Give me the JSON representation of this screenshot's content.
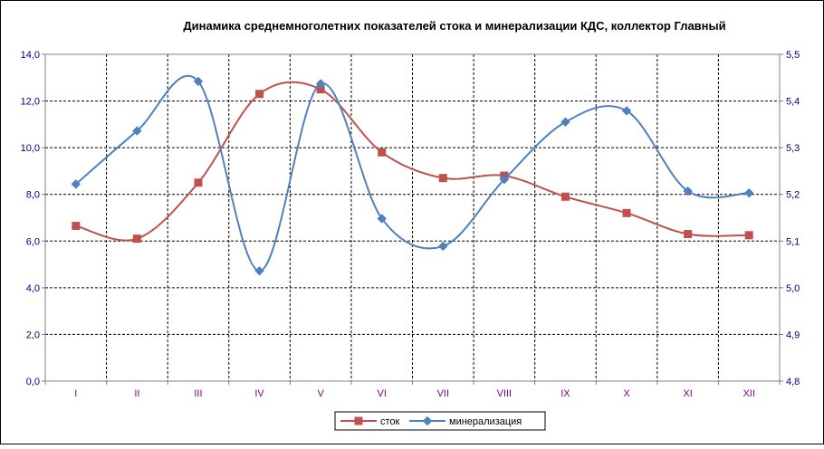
{
  "chart_data": {
    "type": "line",
    "title": "Динамика среднемноголетних показателей стока и минерализации КДС, коллектор Главный",
    "categories": [
      "I",
      "II",
      "III",
      "IV",
      "V",
      "VI",
      "VII",
      "VIII",
      "IX",
      "X",
      "XI",
      "XII"
    ],
    "y_left": {
      "range": [
        0,
        14
      ],
      "step": 2,
      "tick_labels": [
        "0,0",
        "2,0",
        "4,0",
        "6,0",
        "8,0",
        "10,0",
        "12,0",
        "14,0"
      ]
    },
    "y_right": {
      "range": [
        4.8,
        5.5
      ],
      "step": 0.1,
      "tick_labels": [
        "4,8",
        "4,9",
        "5,0",
        "5,1",
        "5,2",
        "5,3",
        "5,4",
        "5,5"
      ]
    },
    "series": [
      {
        "name": "сток",
        "axis": "left",
        "color": "#c0504d",
        "marker": "square",
        "values": [
          6.65,
          6.1,
          8.5,
          12.3,
          12.5,
          9.8,
          8.7,
          8.8,
          7.9,
          7.2,
          6.3,
          6.25
        ]
      },
      {
        "name": "минерализация",
        "axis": "right",
        "color": "#4f81bd",
        "marker": "diamond",
        "values": [
          5.222,
          5.336,
          5.442,
          5.036,
          5.437,
          5.148,
          5.089,
          5.232,
          5.355,
          5.379,
          5.207,
          5.203
        ]
      }
    ],
    "grid": true,
    "legend": "bottom"
  }
}
